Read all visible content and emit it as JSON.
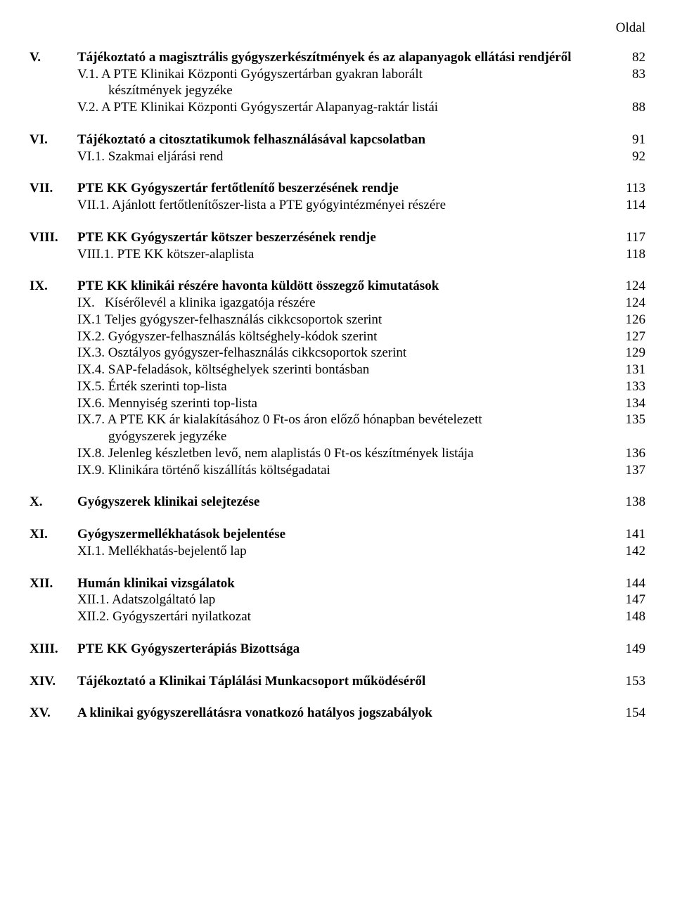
{
  "header": {
    "page_label": "Oldal"
  },
  "sections": {
    "V": {
      "num": "V.",
      "title": "Tájékoztató a magisztrális gyógyszerkészítmények és az alapanyagok ellátási rendjéről",
      "title_page": "82",
      "items": [
        {
          "label": "V.1. A PTE Klinikai Központi Gyógyszertárban gyakran laborált",
          "cont": "készítmények jegyzéke",
          "page": "83"
        },
        {
          "label": "V.2. A PTE Klinikai Központi Gyógyszertár Alapanyag-raktár listái",
          "page": "88"
        }
      ]
    },
    "VI": {
      "num": "VI.",
      "title": "Tájékoztató a citosztatikumok felhasználásával kapcsolatban",
      "title_page": "91",
      "items": [
        {
          "label": "VI.1. Szakmai eljárási rend",
          "page": "92"
        }
      ]
    },
    "VII": {
      "num": "VII.",
      "title": "PTE KK Gyógyszertár fertőtlenítő beszerzésének rendje",
      "title_page": "113",
      "items": [
        {
          "label": "VII.1. Ajánlott fertőtlenítőszer-lista a PTE gyógyintézményei részére",
          "page": "114"
        }
      ]
    },
    "VIII": {
      "num": "VIII.",
      "title": "PTE KK Gyógyszertár kötszer beszerzésének rendje",
      "title_page": "117",
      "items": [
        {
          "label": "VIII.1. PTE KK kötszer-alaplista",
          "page": "118"
        }
      ]
    },
    "IX": {
      "num": "IX.",
      "title": "PTE KK klinikái részére havonta küldött összegző kimutatások",
      "title_page": "124",
      "items": [
        {
          "label": "IX.   Kísérőlevél a klinika igazgatója részére",
          "page": "124"
        },
        {
          "label": "IX.1 Teljes gyógyszer-felhasználás cikkcsoportok szerint",
          "page": "126"
        },
        {
          "label": "IX.2. Gyógyszer-felhasználás költséghely-kódok szerint",
          "page": "127"
        },
        {
          "label": "IX.3. Osztályos gyógyszer-felhasználás cikkcsoportok szerint",
          "page": "129"
        },
        {
          "label": "IX.4. SAP-feladások, költséghelyek szerinti bontásban",
          "page": "131"
        },
        {
          "label": "IX.5. Érték szerinti top-lista",
          "page": "133"
        },
        {
          "label": "IX.6. Mennyiség szerinti top-lista",
          "page": "134"
        },
        {
          "label": "IX.7. A PTE KK ár kialakításához 0 Ft-os áron előző hónapban bevételezett",
          "cont": "gyógyszerek jegyzéke",
          "page": "135"
        },
        {
          "label": "IX.8. Jelenleg készletben levő, nem alaplistás 0 Ft-os készítmények listája",
          "page": "136"
        },
        {
          "label": "IX.9. Klinikára történő kiszállítás költségadatai",
          "page": "137"
        }
      ]
    },
    "X": {
      "num": "X.",
      "title": "Gyógyszerek klinikai selejtezése",
      "title_page": "138",
      "items": []
    },
    "XI": {
      "num": "XI.",
      "title": "Gyógyszermellékhatások bejelentése",
      "title_page": "141",
      "items": [
        {
          "label": "XI.1. Mellékhatás-bejelentő lap",
          "page": "142"
        }
      ]
    },
    "XII": {
      "num": "XII.",
      "title": "Humán klinikai vizsgálatok",
      "title_page": "144",
      "items": [
        {
          "label": "XII.1. Adatszolgáltató lap",
          "page": "147"
        },
        {
          "label": "XII.2. Gyógyszertári nyilatkozat",
          "page": "148"
        }
      ]
    },
    "XIII": {
      "num": "XIII.",
      "title": "PTE KK Gyógyszerterápiás Bizottsága",
      "title_page": "149",
      "items": []
    },
    "XIV": {
      "num": "XIV.",
      "title": "Tájékoztató a Klinikai Táplálási Munkacsoport működéséről",
      "title_page": "153",
      "items": []
    },
    "XV": {
      "num": "XV.",
      "title": "A klinikai gyógyszerellátásra vonatkozó hatályos jogszabályok",
      "title_page": "154",
      "items": []
    }
  }
}
